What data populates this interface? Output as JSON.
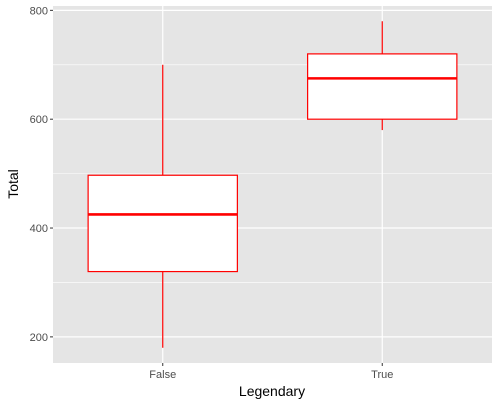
{
  "chart_data": {
    "type": "boxplot",
    "xlabel": "Legendary",
    "ylabel": "Total",
    "categories": [
      "False",
      "True"
    ],
    "boxes": [
      {
        "category": "False",
        "whisker_low": 180,
        "q1": 320,
        "median": 425,
        "q3": 497,
        "whisker_high": 700
      },
      {
        "category": "True",
        "whisker_low": 580,
        "q1": 600,
        "median": 675,
        "q3": 720,
        "whisker_high": 780
      }
    ],
    "ylim": [
      152,
      808
    ],
    "yticks": [
      200,
      400,
      600,
      800
    ],
    "grid": true,
    "colors": {
      "panel": "#e5e5e5",
      "grid": "#ffffff",
      "box_line": "#ff0000",
      "box_fill": "#ffffff"
    }
  }
}
